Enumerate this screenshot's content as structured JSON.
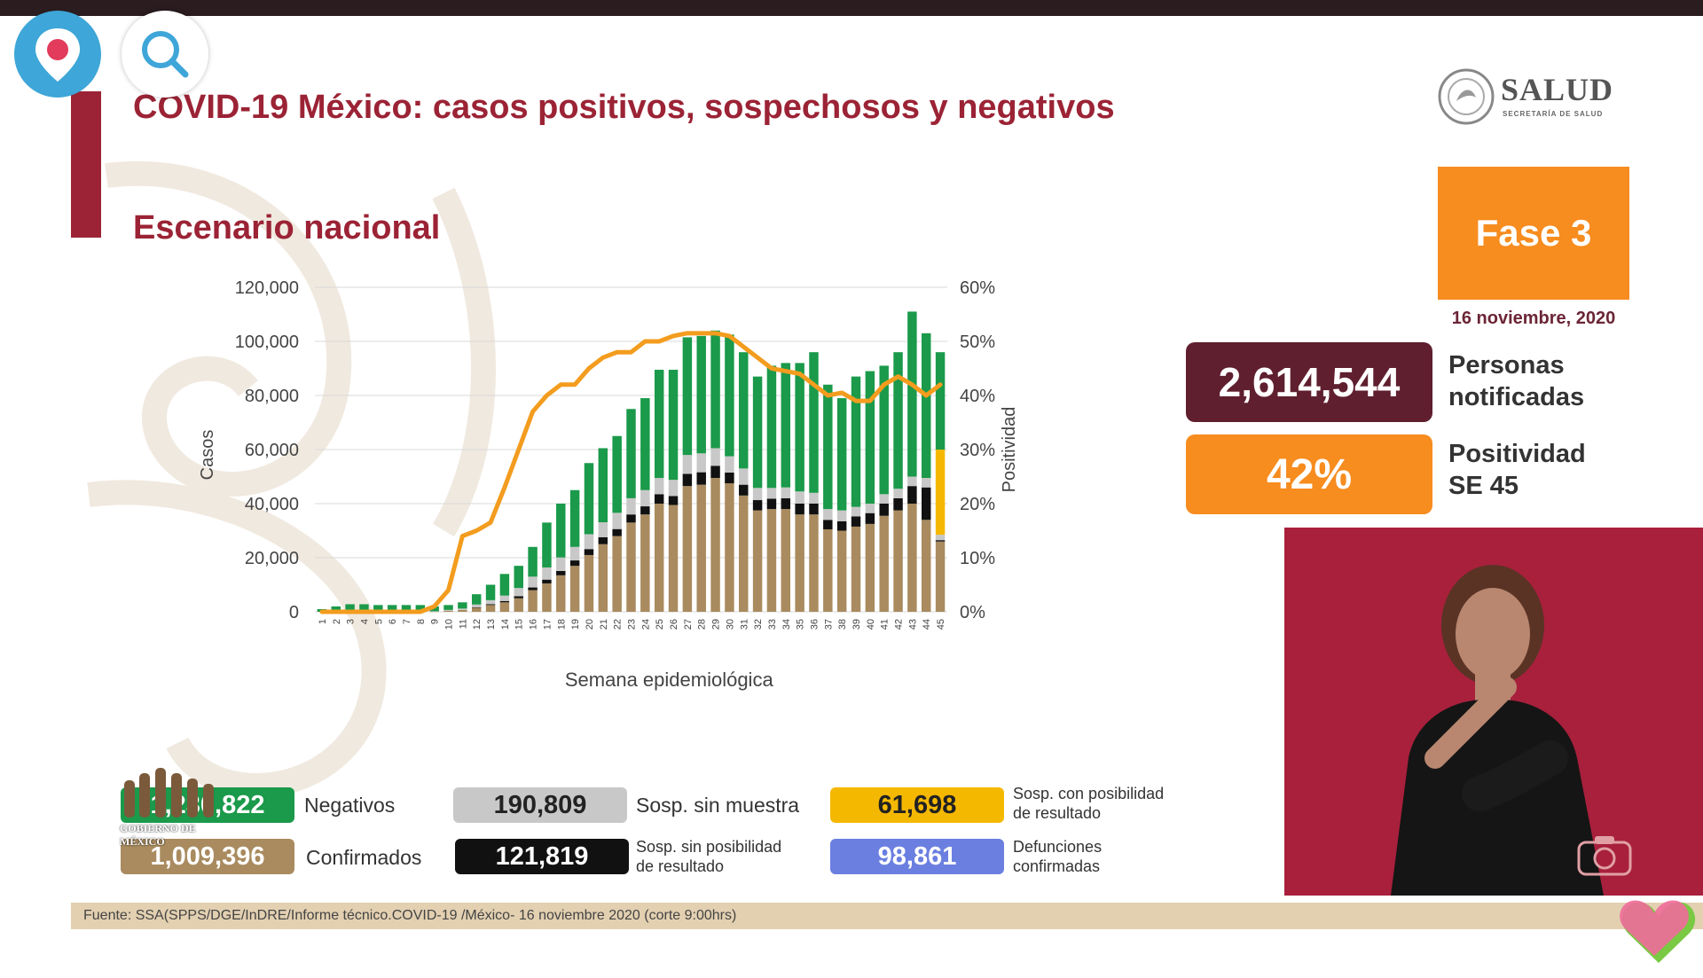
{
  "slide": {
    "title": "COVID-19 México: casos positivos, sospechosos y negativos",
    "subtitle": "Escenario nacional",
    "logo_text": "SALUD",
    "logo_subtext": "SECRETARÍA DE SALUD",
    "phase": "Fase 3",
    "date": "16 noviembre, 2020",
    "stats": [
      {
        "value": "2,614,544",
        "label_line1": "Personas",
        "label_line2": "notificadas"
      },
      {
        "value": "42%",
        "label_line1": "Positividad",
        "label_line2": "SE 45"
      }
    ],
    "legend": [
      {
        "value": "1,230,822",
        "label": "Negativos",
        "color": "#1a9a4a"
      },
      {
        "value": "190,809",
        "label": "Sosp. sin muestra",
        "color": "#c8c8c8"
      },
      {
        "value": "61,698",
        "label_line1": "Sosp. con posibilidad",
        "label_line2": "de resultado",
        "color": "#f5b800"
      },
      {
        "value": "1,009,396",
        "label": "Confirmados",
        "color": "#a98b5f"
      },
      {
        "value": "121,819",
        "label_line1": "Sosp. sin posibilidad",
        "label_line2": "de resultado",
        "color": "#111111"
      },
      {
        "value": "98,861",
        "label_line1": "Defunciones",
        "label_line2": "confirmadas",
        "color": "#6b7fe0"
      }
    ],
    "source": "Fuente: SSA(SPPS/DGE/InDRE/Informe técnico.COVID-19 /México- 16 noviembre 2020 (corte 9:00hrs)",
    "gob_logo": "GOBIERNO DE MÉXICO"
  },
  "colors": {
    "brand": "#9b2335",
    "phase": "#f78c1f",
    "stat_dark": "#5f1f2f",
    "negatives": "#1a9a4a",
    "suspect_no_sample": "#c8c8c8",
    "confirmed": "#a98b5f",
    "suspect_no_result": "#111111",
    "suspect_possible": "#f5b800",
    "line": "#f39c1e"
  },
  "icons": {
    "periscope": "periscope-logo-icon",
    "search": "search-icon",
    "camera": "camera-icon",
    "heart": "heart-icon"
  },
  "chart_data": {
    "type": "bar",
    "stacked": true,
    "xlabel": "Semana epidemiológica",
    "ylabel": "Casos",
    "y2label": "Positividad",
    "ylim": [
      0,
      120000
    ],
    "y2lim": [
      0,
      60
    ],
    "yticks": [
      "0",
      "20,000",
      "40,000",
      "60,000",
      "80,000",
      "100,000",
      "120,000"
    ],
    "y2ticks": [
      "0%",
      "10%",
      "20%",
      "30%",
      "40%",
      "50%",
      "60%"
    ],
    "grid": true,
    "categories": [
      "1",
      "2",
      "3",
      "4",
      "5",
      "6",
      "7",
      "8",
      "9",
      "10",
      "11",
      "12",
      "13",
      "14",
      "15",
      "16",
      "17",
      "18",
      "19",
      "20",
      "21",
      "22",
      "23",
      "24",
      "25",
      "26",
      "27",
      "28",
      "29",
      "30",
      "31",
      "32",
      "33",
      "34",
      "35",
      "36",
      "37",
      "38",
      "39",
      "40",
      "41",
      "42",
      "43",
      "44",
      "45"
    ],
    "series": [
      {
        "name": "Confirmados",
        "values": [
          0,
          0,
          0,
          0,
          0,
          0,
          0,
          0,
          100,
          400,
          700,
          1500,
          2500,
          3500,
          5000,
          8000,
          10500,
          13500,
          17000,
          21000,
          25000,
          28000,
          33000,
          36000,
          40000,
          39500,
          46500,
          47000,
          49500,
          47500,
          43000,
          37500,
          38000,
          38000,
          36000,
          36000,
          30500,
          30000,
          31500,
          32500,
          35500,
          37500,
          40000,
          34000,
          26000
        ]
      },
      {
        "name": "Sosp. sin posibilidad de resultado",
        "values": [
          0,
          0,
          0,
          0,
          0,
          0,
          0,
          0,
          0,
          0,
          0,
          200,
          300,
          500,
          800,
          1000,
          1400,
          1600,
          2000,
          2200,
          2600,
          2600,
          3000,
          3000,
          3500,
          3300,
          4500,
          4600,
          4500,
          4000,
          4000,
          3800,
          3800,
          4000,
          4000,
          4000,
          3500,
          3500,
          3800,
          4000,
          4500,
          4500,
          6500,
          12000,
          500
        ]
      },
      {
        "name": "Sosp. sin muestra",
        "values": [
          0,
          0,
          0,
          0,
          0,
          0,
          0,
          0,
          100,
          300,
          500,
          1000,
          1500,
          2000,
          3000,
          4000,
          4500,
          5000,
          5000,
          5500,
          5500,
          6000,
          6000,
          6000,
          6000,
          6000,
          7000,
          7000,
          6500,
          6000,
          6000,
          4500,
          4000,
          4000,
          4500,
          4000,
          4000,
          4000,
          3500,
          3500,
          3500,
          3500,
          3500,
          3500,
          2000
        ]
      },
      {
        "name": "Sosp. con posibilidad de resultado",
        "values": [
          0,
          0,
          0,
          0,
          0,
          0,
          0,
          0,
          0,
          0,
          0,
          0,
          0,
          0,
          0,
          0,
          0,
          0,
          0,
          0,
          0,
          0,
          0,
          0,
          0,
          0,
          0,
          0,
          0,
          0,
          0,
          0,
          0,
          0,
          0,
          0,
          0,
          0,
          0,
          0,
          0,
          0,
          0,
          0,
          31500
        ]
      },
      {
        "name": "Negativos",
        "values": [
          1000,
          2000,
          2800,
          2800,
          2500,
          2500,
          2500,
          2500,
          1800,
          1800,
          2300,
          3800,
          5700,
          8000,
          8200,
          11000,
          16600,
          19900,
          21000,
          26300,
          27400,
          28400,
          33000,
          34000,
          40000,
          40700,
          43500,
          43400,
          43500,
          45000,
          43000,
          41200,
          45200,
          46000,
          47500,
          52000,
          46000,
          41500,
          48200,
          49000,
          47500,
          50500,
          61000,
          53500,
          36000
        ]
      }
    ],
    "line": {
      "name": "Positividad",
      "axis": "right",
      "values": [
        0,
        0,
        0,
        0,
        0,
        0,
        0,
        0,
        1,
        4,
        14,
        15,
        16.5,
        23,
        30,
        37,
        40,
        42,
        42,
        45,
        47,
        48,
        48,
        50,
        50,
        51,
        51.5,
        51.5,
        51.5,
        51,
        49,
        47,
        45,
        44.5,
        44,
        42,
        40,
        40.5,
        39,
        39,
        42,
        43.5,
        42,
        40,
        42
      ]
    }
  }
}
